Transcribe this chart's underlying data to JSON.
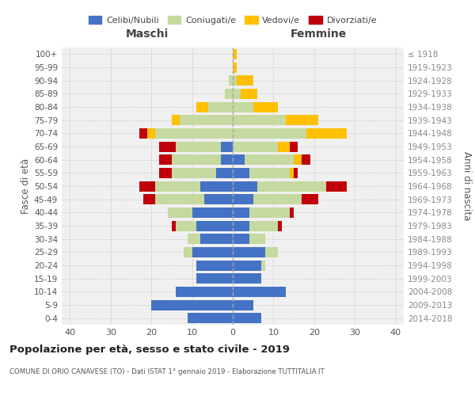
{
  "age_groups": [
    "0-4",
    "5-9",
    "10-14",
    "15-19",
    "20-24",
    "25-29",
    "30-34",
    "35-39",
    "40-44",
    "45-49",
    "50-54",
    "55-59",
    "60-64",
    "65-69",
    "70-74",
    "75-79",
    "80-84",
    "85-89",
    "90-94",
    "95-99",
    "100+"
  ],
  "birth_years": [
    "2014-2018",
    "2009-2013",
    "2004-2008",
    "1999-2003",
    "1994-1998",
    "1989-1993",
    "1984-1988",
    "1979-1983",
    "1974-1978",
    "1969-1973",
    "1964-1968",
    "1959-1963",
    "1954-1958",
    "1949-1953",
    "1944-1948",
    "1939-1943",
    "1934-1938",
    "1929-1933",
    "1924-1928",
    "1919-1923",
    "≤ 1918"
  ],
  "males": {
    "celibi": [
      11,
      20,
      14,
      9,
      9,
      10,
      8,
      9,
      10,
      7,
      8,
      4,
      3,
      3,
      0,
      0,
      0,
      0,
      0,
      0,
      0
    ],
    "coniugati": [
      0,
      0,
      0,
      0,
      0,
      2,
      3,
      5,
      6,
      12,
      11,
      11,
      12,
      11,
      19,
      13,
      6,
      2,
      1,
      0,
      0
    ],
    "vedovi": [
      0,
      0,
      0,
      0,
      0,
      0,
      0,
      0,
      0,
      0,
      0,
      0,
      0,
      0,
      2,
      2,
      3,
      0,
      0,
      0,
      0
    ],
    "divorziati": [
      0,
      0,
      0,
      0,
      0,
      0,
      0,
      1,
      0,
      3,
      4,
      3,
      3,
      4,
      2,
      0,
      0,
      0,
      0,
      0,
      0
    ]
  },
  "females": {
    "nubili": [
      7,
      5,
      13,
      7,
      7,
      8,
      4,
      4,
      4,
      5,
      6,
      4,
      3,
      0,
      0,
      0,
      0,
      0,
      0,
      0,
      0
    ],
    "coniugate": [
      0,
      0,
      0,
      0,
      1,
      3,
      4,
      7,
      10,
      12,
      17,
      10,
      12,
      11,
      18,
      13,
      5,
      2,
      1,
      0,
      0
    ],
    "vedove": [
      0,
      0,
      0,
      0,
      0,
      0,
      0,
      0,
      0,
      0,
      0,
      1,
      2,
      3,
      10,
      8,
      6,
      4,
      4,
      1,
      1
    ],
    "divorziate": [
      0,
      0,
      0,
      0,
      0,
      0,
      0,
      1,
      1,
      4,
      5,
      1,
      2,
      2,
      0,
      0,
      0,
      0,
      0,
      0,
      0
    ]
  },
  "colors": {
    "celibi": "#4472c4",
    "coniugati": "#c5d9a0",
    "vedovi": "#ffc000",
    "divorziati": "#c0000b"
  },
  "title": "Popolazione per età, sesso e stato civile - 2019",
  "subtitle": "COMUNE DI ORIO CANAVESE (TO) - Dati ISTAT 1° gennaio 2019 - Elaborazione TUTTITALIA.IT",
  "xlabel_left": "Maschi",
  "xlabel_right": "Femmine",
  "ylabel_left": "Fasce di età",
  "ylabel_right": "Anni di nascita",
  "xlim": 42,
  "legend_labels": [
    "Celibi/Nubili",
    "Coniugati/e",
    "Vedovi/e",
    "Divorziati/e"
  ],
  "background_color": "#f0f0f0"
}
